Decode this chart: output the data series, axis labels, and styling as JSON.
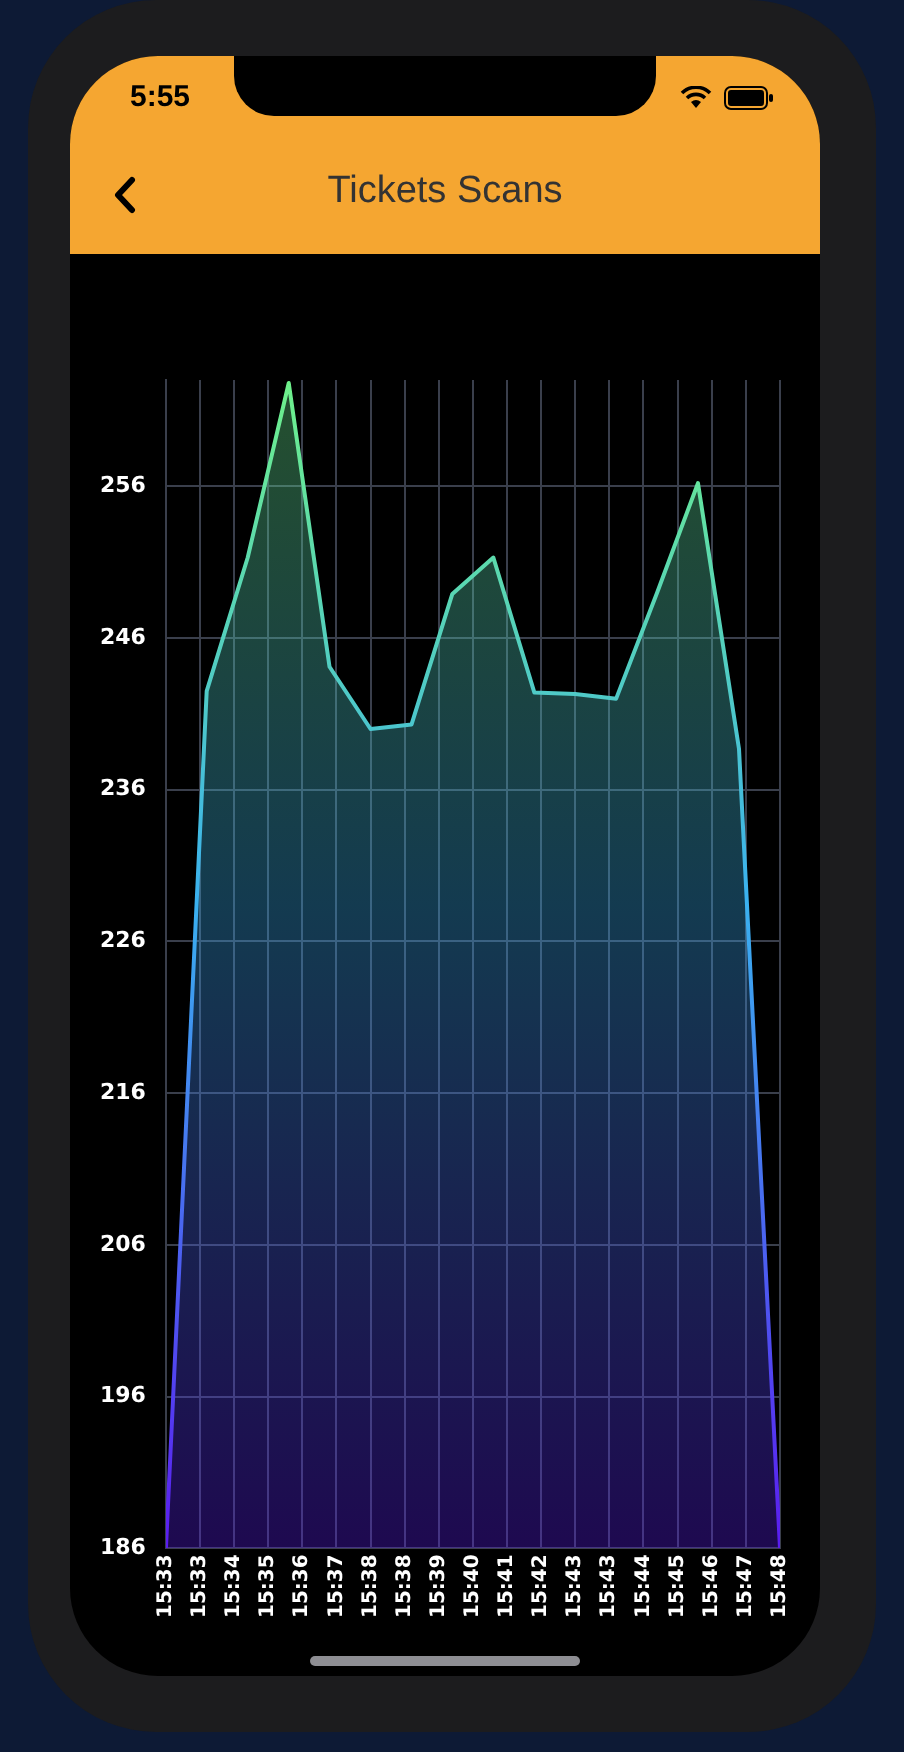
{
  "chart_data": {
    "type": "area",
    "title": "Tickets Scans",
    "annotations": [
      "5:55"
    ],
    "x": [
      15.5424,
      15.559,
      15.5757,
      15.5924,
      15.609,
      15.6257,
      15.6424,
      15.659,
      15.6757,
      15.6924,
      15.709,
      15.7257,
      15.7424,
      15.759,
      15.7757,
      15.7924
    ],
    "series": [
      {
        "color": "#6ef08a",
        "values": [
          186,
          242.5,
          251.3,
          262.8,
          244.1,
          240.0,
          240.3,
          248.9,
          251.3,
          242.4,
          242.3,
          242.0,
          249.0,
          256.2,
          238.7,
          186
        ]
      }
    ],
    "xlim": [
      15.5424,
      15.7924
    ],
    "xticks": [
      {
        "value": 15.5424,
        "label": "15:33"
      },
      {
        "value": 15.5563,
        "label": "15:33"
      },
      {
        "value": 15.5701,
        "label": "15:34"
      },
      {
        "value": 15.584,
        "label": "15:35"
      },
      {
        "value": 15.5979,
        "label": "15:36"
      },
      {
        "value": 15.6118,
        "label": "15:37"
      },
      {
        "value": 15.6257,
        "label": "15:38"
      },
      {
        "value": 15.6396,
        "label": "15:38"
      },
      {
        "value": 15.6535,
        "label": "15:39"
      },
      {
        "value": 15.6674,
        "label": "15:40"
      },
      {
        "value": 15.6813,
        "label": "15:41"
      },
      {
        "value": 15.6951,
        "label": "15:42"
      },
      {
        "value": 15.709,
        "label": "15:43"
      },
      {
        "value": 15.7229,
        "label": "15:43"
      },
      {
        "value": 15.7368,
        "label": "15:44"
      },
      {
        "value": 15.7507,
        "label": "15:45"
      },
      {
        "value": 15.7646,
        "label": "15:46"
      },
      {
        "value": 15.7785,
        "label": "15:47"
      },
      {
        "value": 15.7924,
        "label": "15:48"
      }
    ],
    "ylim": [
      186,
      263
    ],
    "yticks": [
      186,
      196,
      206,
      216,
      226,
      236,
      246,
      256
    ],
    "grid": true,
    "marker": "none",
    "line_style": "solid"
  }
}
